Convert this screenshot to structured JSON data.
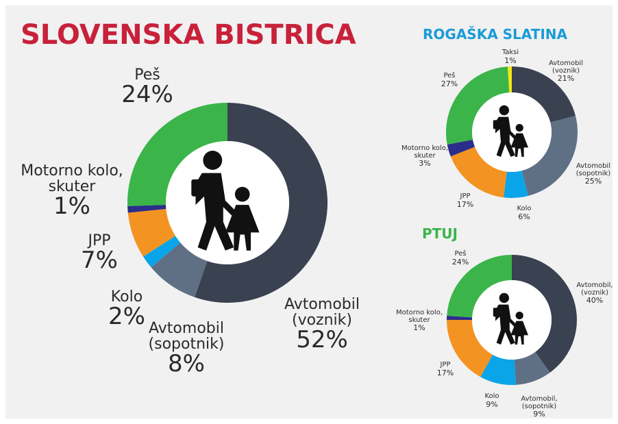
{
  "chart_data": [
    {
      "type": "pie",
      "title": "SLOVENSKA BISTRICA",
      "categories": [
        "Avtomobil\n(voznik)",
        "Avtomobil\n(sopotnik)",
        "Kolo",
        "JPP",
        "Motorno kolo,\nskuter",
        "Peš"
      ],
      "values": [
        52,
        8,
        2,
        7,
        1,
        24
      ],
      "value_labels": [
        "52%",
        "8%",
        "2%",
        "7%",
        "1%",
        "24%"
      ],
      "colors": [
        "#3a4150",
        "#5f6f84",
        "#0aa5e8",
        "#f39322",
        "#2b2d8a",
        "#3bb54a"
      ]
    },
    {
      "type": "pie",
      "title": "ROGAŠKA SLATINA",
      "categories": [
        "Avtomobil\n(voznik)",
        "Avtomobil\n(sopotnik)",
        "Kolo",
        "JPP",
        "Motorno kolo,\nskuter",
        "Peš",
        "Taksi"
      ],
      "values": [
        21,
        25,
        6,
        17,
        3,
        27,
        1
      ],
      "value_labels": [
        "21%",
        "25%",
        "6%",
        "17%",
        "3%",
        "27%",
        "1%"
      ],
      "colors": [
        "#3a4150",
        "#5f6f84",
        "#0aa5e8",
        "#f39322",
        "#2b2d8a",
        "#3bb54a",
        "#f5e616"
      ]
    },
    {
      "type": "pie",
      "title": "PTUJ",
      "categories": [
        "Avtomobil,\n(voznik)",
        "Avtomobil,\n(sopotnik)",
        "Kolo",
        "JPP",
        "Motorno kolo,\nskuter",
        "Peš"
      ],
      "values": [
        40,
        9,
        9,
        17,
        1,
        24
      ],
      "value_labels": [
        "40%",
        "9%",
        "9%",
        "17%",
        "1%",
        "24%"
      ],
      "colors": [
        "#3a4150",
        "#5f6f84",
        "#0aa5e8",
        "#f39322",
        "#2b2d8a",
        "#3bb54a"
      ]
    }
  ]
}
